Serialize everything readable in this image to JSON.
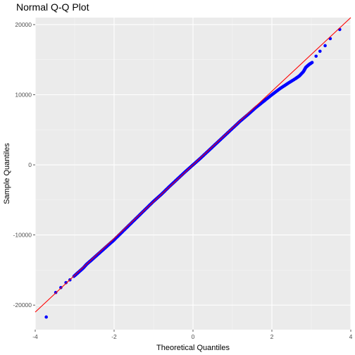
{
  "chart_data": {
    "type": "scatter",
    "title": "Normal Q-Q Plot",
    "xlabel": "Theoretical Quantiles",
    "ylabel": "Sample Quantiles",
    "xlim": [
      -4.0,
      4.0
    ],
    "ylim": [
      -23500,
      21000
    ],
    "x_ticks": [
      -4,
      -2,
      0,
      2,
      4
    ],
    "x_tick_labels": [
      "-4",
      "-2",
      "0",
      "2",
      "4"
    ],
    "y_ticks": [
      -20000,
      -10000,
      0,
      10000,
      20000
    ],
    "y_tick_labels": [
      "-20000",
      "-10000",
      "0",
      "10000",
      "20000"
    ],
    "grid": true,
    "background": "#ebebeb",
    "point_color": "#0000ff",
    "line_color": "#ff0000",
    "reference_line": {
      "intercept": 0,
      "slope": 5250
    },
    "points": {
      "x": [
        -3.72,
        -3.48,
        -3.35,
        -3.22,
        -3.12,
        -3.02,
        -2.94,
        -2.86,
        -2.78,
        -2.7,
        -2.6,
        -2.5,
        -2.4,
        -2.3,
        -2.2,
        -2.1,
        -2.0,
        -1.8,
        -1.6,
        -1.4,
        -1.2,
        -1.0,
        -0.8,
        -0.6,
        -0.4,
        -0.2,
        0.0,
        0.2,
        0.4,
        0.6,
        0.8,
        1.0,
        1.2,
        1.4,
        1.6,
        1.8,
        2.0,
        2.2,
        2.4,
        2.6,
        2.7,
        2.8,
        2.86,
        2.94,
        3.02,
        3.12,
        3.22,
        3.35,
        3.48,
        3.72
      ],
      "y": [
        -21700,
        -18200,
        -17500,
        -16800,
        -16400,
        -15900,
        -15500,
        -15100,
        -14700,
        -14200,
        -13700,
        -13200,
        -12700,
        -12200,
        -11700,
        -11200,
        -10700,
        -9600,
        -8500,
        -7400,
        -6300,
        -5200,
        -4200,
        -3100,
        -2050,
        -1000,
        0,
        1000,
        2050,
        3100,
        4150,
        5200,
        6250,
        7200,
        8200,
        9100,
        10000,
        10850,
        11600,
        12300,
        12700,
        13300,
        13900,
        14300,
        14600,
        15500,
        16200,
        17000,
        18000,
        19300
      ]
    }
  }
}
